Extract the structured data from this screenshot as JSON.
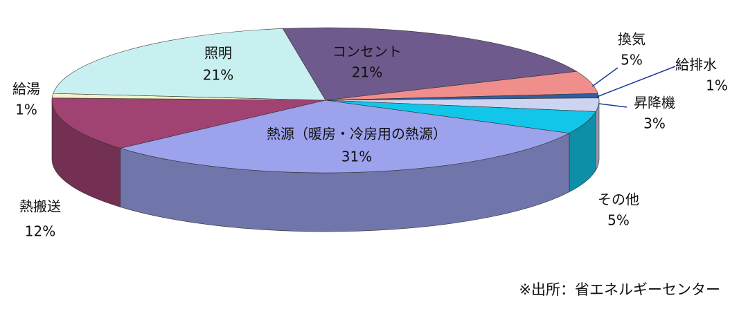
{
  "chart_data": {
    "type": "pie3d",
    "categories": [
      "コンセント",
      "換気",
      "給排水",
      "昇降機",
      "その他",
      "熱源（暖房・冷房用の熱源）",
      "熱搬送",
      "給湯",
      "照明"
    ],
    "values": [
      21,
      5,
      1,
      3,
      5,
      31,
      12,
      1,
      21
    ],
    "value_labels": [
      "21%",
      "5%",
      "1%",
      "3%",
      "5%",
      "31%",
      "12%",
      "1%",
      "21%"
    ],
    "colors": [
      "#6e5a8c",
      "#f08e8c",
      "#2f5fa0",
      "#cdd4f2",
      "#12c6ea",
      "#9ca2ec",
      "#a04272",
      "#f2f2c4",
      "#c8f0f0"
    ],
    "source": "※出所：省エネルギーセンター"
  }
}
